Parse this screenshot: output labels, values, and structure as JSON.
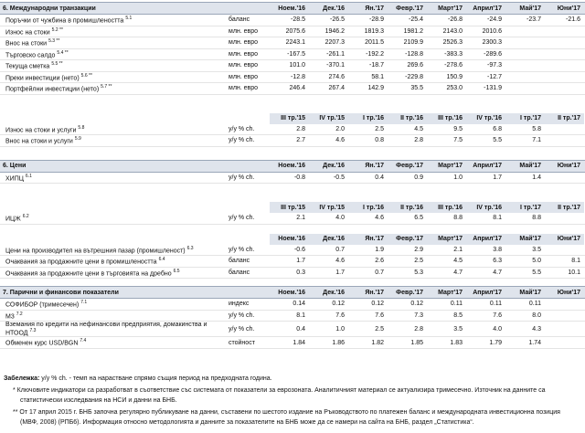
{
  "sections": [
    {
      "title": "6. Международни транзакции",
      "blocks": [
        {
          "columns": [
            "Ноем.'16",
            "Дек.'16",
            "Ян.'17",
            "Февр.'17",
            "Март'17",
            "Април'17",
            "Май'17",
            "Юни'17"
          ],
          "rows": [
            {
              "label": "Поръчки от чужбина в промишлеността",
              "ref": "5.1",
              "unit": "баланс",
              "values": [
                "-28.5",
                "-26.5",
                "-28.9",
                "-25.4",
                "-26.8",
                "-24.9",
                "-23.7",
                "-21.6"
              ]
            },
            {
              "label": "Износ на стоки",
              "ref": "5.2 **",
              "unit": "млн. евро",
              "values": [
                "2075.6",
                "1946.2",
                "1819.3",
                "1981.2",
                "2143.0",
                "2010.6"
              ]
            },
            {
              "label": "Внос на стоки",
              "ref": "5.3 **",
              "unit": "млн. евро",
              "values": [
                "2243.1",
                "2207.3",
                "2011.5",
                "2109.9",
                "2526.3",
                "2300.3"
              ]
            },
            {
              "label": "Търговско салдо",
              "ref": "5.4 **",
              "unit": "млн. евро",
              "values": [
                "-167.5",
                "-261.1",
                "-192.2",
                "-128.8",
                "-383.3",
                "-289.6"
              ]
            },
            {
              "label": "Текуща сметка",
              "ref": "5.5 **",
              "unit": "млн. евро",
              "values": [
                "101.0",
                "-370.1",
                "-18.7",
                "269.6",
                "-278.6",
                "-97.3"
              ]
            },
            {
              "label": "Преки инвестиции (нето)",
              "ref": "5.6 **",
              "unit": "млн. евро",
              "values": [
                "-12.8",
                "274.6",
                "58.1",
                "-229.8",
                "150.9",
                "-12.7"
              ]
            },
            {
              "label": "Портфейлни инвестиции (нето)",
              "ref": "5.7 **",
              "unit": "млн. евро",
              "values": [
                "246.4",
                "267.4",
                "142.9",
                "35.5",
                "253.0",
                "-131.9"
              ]
            }
          ]
        },
        {
          "columns": [
            "III тр.'15",
            "IV тр.'15",
            "I тр.'16",
            "II тр.'16",
            "III тр.'16",
            "IV тр.'16",
            "I тр.'17",
            "II тр.'17"
          ],
          "rows": [
            {
              "label": "Износ на стоки и услуги",
              "ref": "5.8",
              "unit": "у/у % ch.",
              "values": [
                "2.8",
                "2.0",
                "2.5",
                "4.5",
                "9.5",
                "6.8",
                "5.8"
              ]
            },
            {
              "label": "Внос на стоки и услуги",
              "ref": "5.9",
              "unit": "у/у % ch.",
              "values": [
                "2.7",
                "4.6",
                "0.8",
                "2.8",
                "7.5",
                "5.5",
                "7.1"
              ]
            }
          ]
        }
      ]
    },
    {
      "title": "6. Цени",
      "blocks": [
        {
          "columns": [
            "Ноем.'16",
            "Дек.'16",
            "Ян.'17",
            "Февр.'17",
            "Март'17",
            "Април'17",
            "Май'17",
            "Юни'17"
          ],
          "rows": [
            {
              "label": "ХИПЦ",
              "ref": "6.1",
              "unit": "у/у % ch.",
              "values": [
                "-0.8",
                "-0.5",
                "0.4",
                "0.9",
                "1.0",
                "1.7",
                "1.4"
              ]
            }
          ]
        },
        {
          "columns": [
            "III тр.'15",
            "IV тр.'15",
            "I тр.'16",
            "II тр.'16",
            "III тр.'16",
            "IV тр.'16",
            "I тр.'17",
            "II тр.'17"
          ],
          "rows": [
            {
              "label": "ИЦЖ",
              "ref": "6.2",
              "unit": "у/у % ch.",
              "values": [
                "2.1",
                "4.0",
                "4.6",
                "6.5",
                "8.8",
                "8.1",
                "8.8"
              ]
            }
          ]
        },
        {
          "columns": [
            "Ноем.'16",
            "Дек.'16",
            "Ян.'17",
            "Февр.'17",
            "Март'17",
            "Април'17",
            "Май'17",
            "Юни'17"
          ],
          "rows": [
            {
              "label": "Цени на производител на вътрешния пазар (промишленост)",
              "ref": "6.3",
              "unit": "у/у % ch.",
              "values": [
                "-0.6",
                "0.7",
                "1.9",
                "2.9",
                "2.1",
                "3.8",
                "3.5"
              ]
            },
            {
              "label": "Очаквания за продажните цени в промишлеността",
              "ref": "6.4",
              "unit": "баланс",
              "values": [
                "1.7",
                "4.6",
                "2.6",
                "2.5",
                "4.5",
                "6.3",
                "5.0",
                "8.1"
              ]
            },
            {
              "label": "Очаквания за продажните цени в търговията на дребно",
              "ref": "6.5",
              "unit": "баланс",
              "values": [
                "0.3",
                "1.7",
                "0.7",
                "5.3",
                "4.7",
                "4.7",
                "5.5",
                "10.1"
              ]
            }
          ]
        }
      ]
    },
    {
      "title": "7. Парични и финансови показатели",
      "blocks": [
        {
          "columns": [
            "Ноем.'16",
            "Дек.'16",
            "Ян.'17",
            "Февр.'17",
            "Март'17",
            "Април'17",
            "Май'17",
            "Юни'17"
          ],
          "rows": [
            {
              "label": "СОФИБОР (тримесечен)",
              "ref": "7.1",
              "unit": "индекс",
              "values": [
                "0.14",
                "0.12",
                "0.12",
                "0.12",
                "0.11",
                "0.11",
                "0.11"
              ]
            },
            {
              "label": "М3",
              "ref": "7.2",
              "unit": "у/у % ch.",
              "values": [
                "8.1",
                "7.6",
                "7.6",
                "7.3",
                "8.5",
                "7.6",
                "8.0"
              ]
            },
            {
              "label": "Вземания по кредити на нефинансови предприятия, домакинства и НТООД",
              "ref": "7.3",
              "unit": "у/у % ch.",
              "values": [
                "0.4",
                "1.0",
                "2.5",
                "2.8",
                "3.5",
                "4.0",
                "4.3"
              ]
            },
            {
              "label": "Обменен курс USD/BGN",
              "ref": "7.4",
              "unit": "стойност",
              "values": [
                "1.84",
                "1.86",
                "1.82",
                "1.85",
                "1.83",
                "1.79",
                "1.74"
              ]
            }
          ]
        }
      ]
    }
  ],
  "notes": {
    "label": "Забележка:",
    "text": "у/у % ch. - темп на нарастване спрямо същия период на предходната година.",
    "star": "* Ключовите индикатори са разработват в съответствие със системата от показатели за еврозоната. Аналитичният материал се актуализира тримесечно. Източник на данните са статистически изследвания на НСИ и данни на БНБ.",
    "double_star": "** От 17 април 2015 г. БНБ започна регулярно публикуване на данни, съставени по шестото издание на Ръководството по платежен баланс и международната инвестиционна позиция (МВФ, 2008) (РПБ6). Информация относно методологията и данните за показателите на БНБ може да се намери на сайта на БНБ, раздел „Статистика“."
  }
}
